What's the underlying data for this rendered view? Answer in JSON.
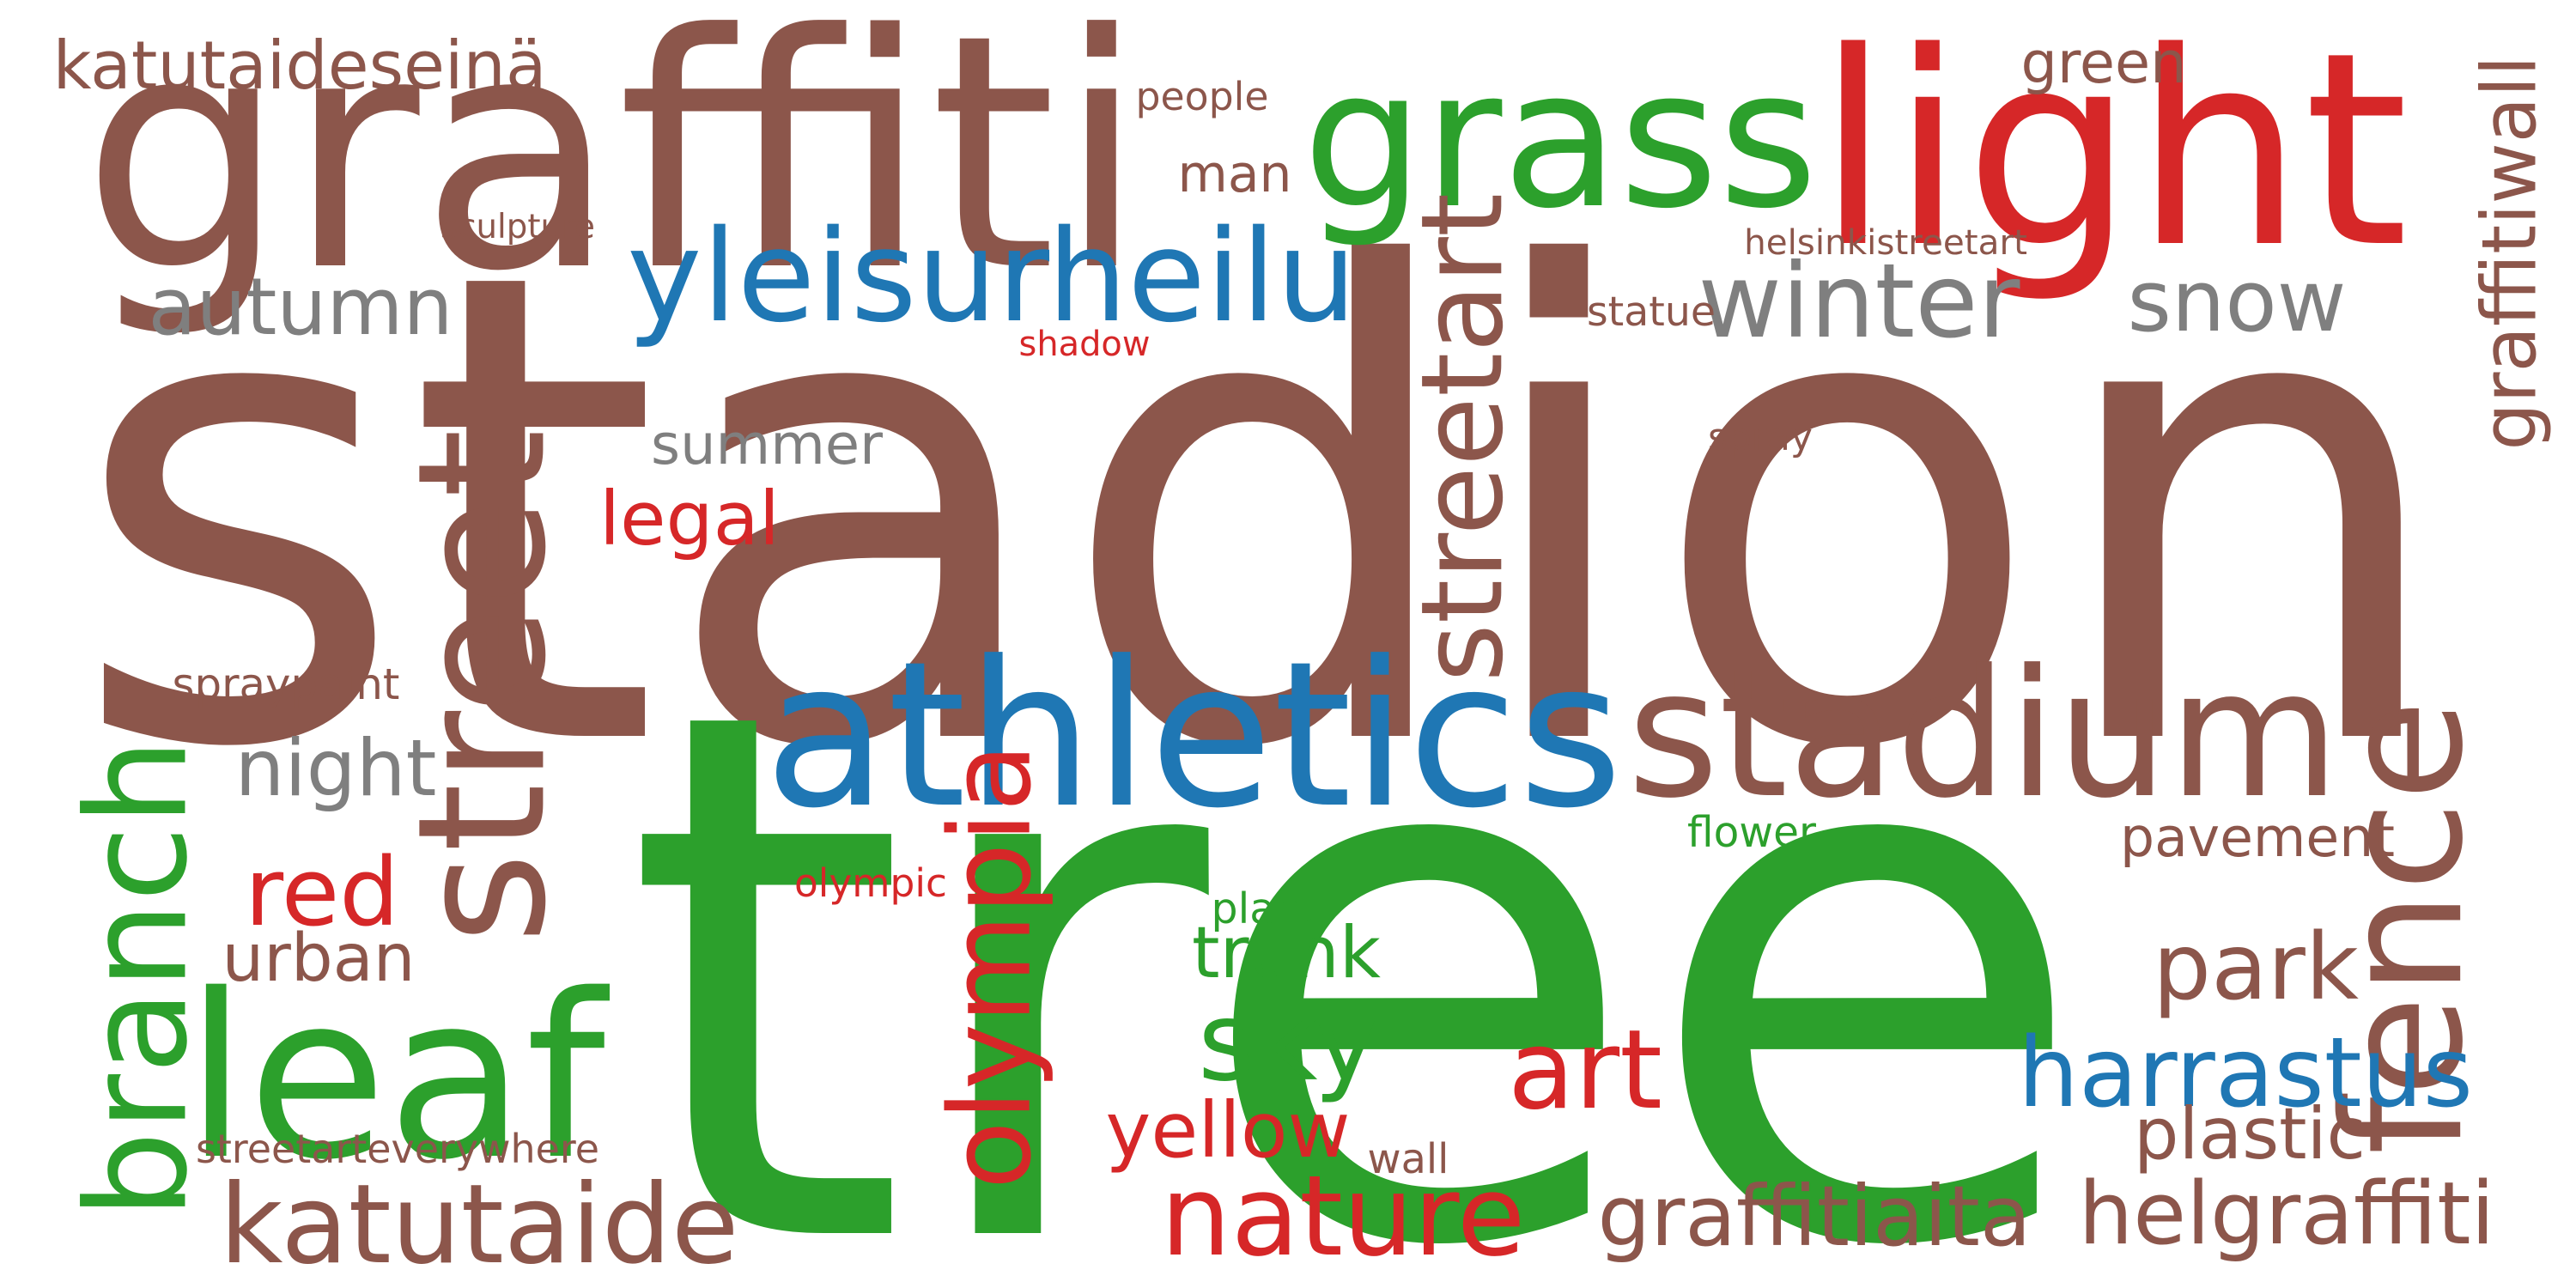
{
  "colors": {
    "brown": "#8c564b",
    "green": "#2ca02c",
    "red": "#d62728",
    "blue": "#1f77b4",
    "gray": "#7f7f7f"
  },
  "words": [
    {
      "id": "stadion",
      "text": "stadion",
      "color": "brown"
    },
    {
      "id": "tree",
      "text": "tree",
      "color": "green"
    },
    {
      "id": "graffiti",
      "text": "graffiti",
      "color": "brown"
    },
    {
      "id": "grass",
      "text": "grass",
      "color": "green"
    },
    {
      "id": "light",
      "text": "light",
      "color": "red"
    },
    {
      "id": "athletics",
      "text": "athletics",
      "color": "blue"
    },
    {
      "id": "stadium",
      "text": "stadium",
      "color": "brown"
    },
    {
      "id": "leaf",
      "text": "leaf",
      "color": "green"
    },
    {
      "id": "street",
      "text": "street",
      "color": "brown"
    },
    {
      "id": "branch",
      "text": "branch",
      "color": "green"
    },
    {
      "id": "fence",
      "text": "fence",
      "color": "brown"
    },
    {
      "id": "yleisurheilu",
      "text": "yleisurheilu",
      "color": "blue"
    },
    {
      "id": "streetart",
      "text": "streetart",
      "color": "brown"
    },
    {
      "id": "katutaide",
      "text": "katutaide",
      "color": "brown"
    },
    {
      "id": "nature",
      "text": "nature",
      "color": "red"
    },
    {
      "id": "olympia",
      "text": "olympia",
      "color": "red"
    },
    {
      "id": "harrastus",
      "text": "harrastus",
      "color": "blue"
    },
    {
      "id": "autumn",
      "text": "autumn",
      "color": "gray"
    },
    {
      "id": "winter",
      "text": "winter",
      "color": "gray"
    },
    {
      "id": "snow",
      "text": "snow",
      "color": "gray"
    },
    {
      "id": "park",
      "text": "park",
      "color": "brown"
    },
    {
      "id": "sky",
      "text": "sky",
      "color": "green"
    },
    {
      "id": "red",
      "text": "red",
      "color": "red"
    },
    {
      "id": "art",
      "text": "art",
      "color": "red"
    },
    {
      "id": "helgraffiti",
      "text": "helgraffiti",
      "color": "brown"
    },
    {
      "id": "graffitiaita",
      "text": "graffitiaita",
      "color": "brown"
    },
    {
      "id": "yellow",
      "text": "yellow",
      "color": "red"
    },
    {
      "id": "night",
      "text": "night",
      "color": "gray"
    },
    {
      "id": "urban",
      "text": "urban",
      "color": "brown"
    },
    {
      "id": "trunk",
      "text": "trunk",
      "color": "green"
    },
    {
      "id": "summer",
      "text": "summer",
      "color": "gray"
    },
    {
      "id": "legal",
      "text": "legal",
      "color": "red"
    },
    {
      "id": "katutaideseina",
      "text": "katutaideseinä",
      "color": "brown"
    },
    {
      "id": "green",
      "text": "green",
      "color": "brown"
    },
    {
      "id": "man",
      "text": "man",
      "color": "brown"
    },
    {
      "id": "pavement",
      "text": "pavement",
      "color": "brown"
    },
    {
      "id": "plastic",
      "text": "plastic",
      "color": "brown"
    },
    {
      "id": "graffitiwall",
      "text": "graffitiwall",
      "color": "brown"
    },
    {
      "id": "people",
      "text": "people",
      "color": "brown"
    },
    {
      "id": "sculpture",
      "text": "sculpture",
      "color": "brown"
    },
    {
      "id": "helsinkistreetart",
      "text": "helsinkistreetart",
      "color": "brown"
    },
    {
      "id": "statue",
      "text": "statue",
      "color": "brown"
    },
    {
      "id": "shadow",
      "text": "shadow",
      "color": "red"
    },
    {
      "id": "spray",
      "text": "spray",
      "color": "brown"
    },
    {
      "id": "spraypaint",
      "text": "spraypaint",
      "color": "brown"
    },
    {
      "id": "flower",
      "text": "flower",
      "color": "green"
    },
    {
      "id": "olympic",
      "text": "olympic",
      "color": "red"
    },
    {
      "id": "plant",
      "text": "plant",
      "color": "green"
    },
    {
      "id": "streetarteverywhere",
      "text": "streetarteverywhere",
      "color": "brown"
    },
    {
      "id": "wall",
      "text": "wall",
      "color": "brown"
    }
  ]
}
